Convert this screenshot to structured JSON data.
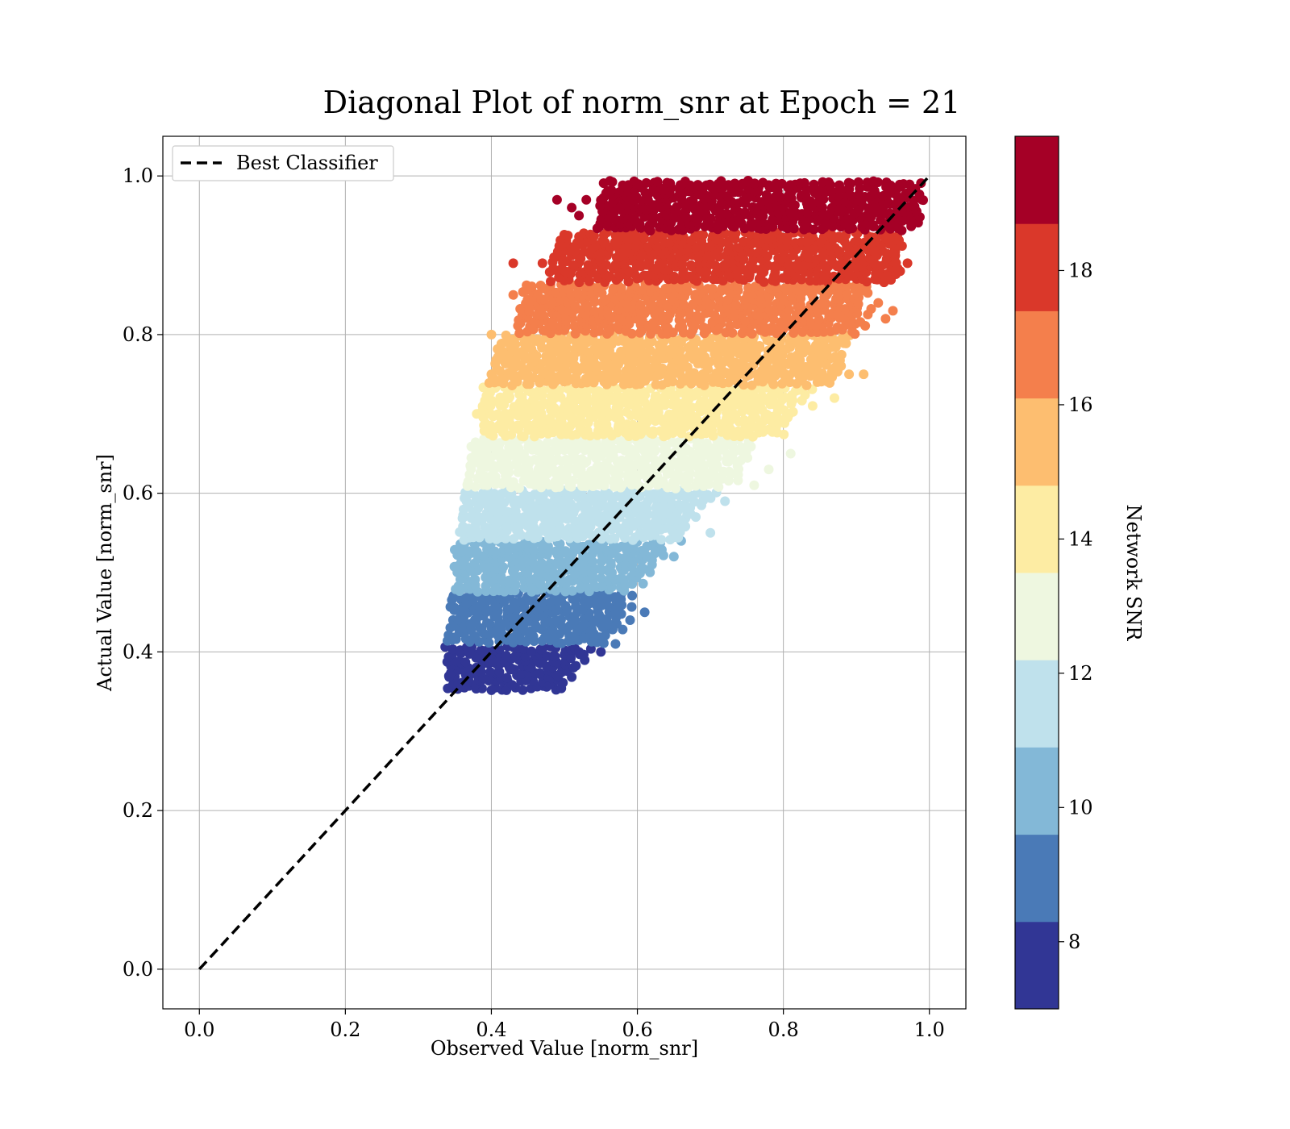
{
  "chart_data": {
    "type": "scatter",
    "title": "Diagonal Plot of norm_snr at Epoch = 21",
    "xlabel": "Observed Value [norm_snr]",
    "ylabel": "Actual Value [norm_snr]",
    "xlim": [
      -0.05,
      1.05
    ],
    "ylim": [
      -0.05,
      1.05
    ],
    "xticks": [
      "0.0",
      "0.2",
      "0.4",
      "0.6",
      "0.8",
      "1.0"
    ],
    "yticks": [
      "0.0",
      "0.2",
      "0.4",
      "0.6",
      "0.8",
      "1.0"
    ],
    "grid": true,
    "legend": {
      "placement": "top-left",
      "entries": [
        "Best Classifier"
      ]
    },
    "reference_line": {
      "name": "Best Classifier",
      "style": "dashed",
      "color": "#000000",
      "x": [
        0.0,
        1.0
      ],
      "y": [
        0.0,
        1.0
      ]
    },
    "colorbar": {
      "label": "Network SNR",
      "range": [
        7,
        20
      ],
      "ticks": [
        "8",
        "10",
        "12",
        "14",
        "16",
        "18"
      ],
      "bands": [
        {
          "from": 7.0,
          "to": 8.3,
          "color": "#313695"
        },
        {
          "from": 8.3,
          "to": 9.6,
          "color": "#4a7ab7"
        },
        {
          "from": 9.6,
          "to": 10.9,
          "color": "#83b8d7"
        },
        {
          "from": 10.9,
          "to": 12.2,
          "color": "#bfe1ec"
        },
        {
          "from": 12.2,
          "to": 13.5,
          "color": "#eef7e0"
        },
        {
          "from": 13.5,
          "to": 14.8,
          "color": "#fdeca3"
        },
        {
          "from": 14.8,
          "to": 16.1,
          "color": "#fdbe70"
        },
        {
          "from": 16.1,
          "to": 17.4,
          "color": "#f47f4c"
        },
        {
          "from": 17.4,
          "to": 18.7,
          "color": "#da382a"
        },
        {
          "from": 18.7,
          "to": 20.0,
          "color": "#a50026"
        }
      ]
    },
    "series": [
      {
        "name": "Network SNR 7.0–8.3",
        "snr": 7.6,
        "actual_range": [
          0.35,
          0.41
        ],
        "observed_range_at_bottom": [
          0.345,
          0.49
        ],
        "observed_range_at_top": [
          0.34,
          0.53
        ],
        "outliers": [
          [
            0.52,
            0.4
          ],
          [
            0.55,
            0.4
          ],
          [
            0.49,
            0.37
          ]
        ]
      },
      {
        "name": "Network SNR 8.3–9.6",
        "snr": 8.9,
        "actual_range": [
          0.41,
          0.475
        ],
        "observed_range_at_bottom": [
          0.345,
          0.56
        ],
        "observed_range_at_top": [
          0.35,
          0.59
        ],
        "outliers": [
          [
            0.57,
            0.41
          ],
          [
            0.61,
            0.45
          ],
          [
            0.59,
            0.44
          ],
          [
            0.58,
            0.48
          ]
        ]
      },
      {
        "name": "Network SNR 9.6–10.9",
        "snr": 10.2,
        "actual_range": [
          0.475,
          0.54
        ],
        "observed_range_at_bottom": [
          0.355,
          0.59
        ],
        "observed_range_at_top": [
          0.355,
          0.64
        ],
        "outliers": [
          [
            0.62,
            0.51
          ],
          [
            0.66,
            0.54
          ],
          [
            0.65,
            0.52
          ]
        ]
      },
      {
        "name": "Network SNR 10.9–12.2",
        "snr": 11.5,
        "actual_range": [
          0.54,
          0.605
        ],
        "observed_range_at_bottom": [
          0.36,
          0.65
        ],
        "observed_range_at_top": [
          0.37,
          0.7
        ],
        "outliers": [
          [
            0.72,
            0.59
          ],
          [
            0.7,
            0.55
          ],
          [
            0.68,
            0.57
          ],
          [
            0.71,
            0.61
          ]
        ]
      },
      {
        "name": "Network SNR 12.2–13.5",
        "snr": 12.8,
        "actual_range": [
          0.605,
          0.67
        ],
        "observed_range_at_bottom": [
          0.37,
          0.72
        ],
        "observed_range_at_top": [
          0.38,
          0.76
        ],
        "outliers": [
          [
            0.81,
            0.65
          ],
          [
            0.76,
            0.61
          ],
          [
            0.78,
            0.63
          ]
        ]
      },
      {
        "name": "Network SNR 13.5–14.8",
        "snr": 14.1,
        "actual_range": [
          0.67,
          0.735
        ],
        "observed_range_at_bottom": [
          0.395,
          0.79
        ],
        "observed_range_at_top": [
          0.39,
          0.83
        ],
        "outliers": [
          [
            0.84,
            0.71
          ],
          [
            0.87,
            0.72
          ],
          [
            0.82,
            0.73
          ],
          [
            0.38,
            0.7
          ]
        ]
      },
      {
        "name": "Network SNR 14.8–16.1",
        "snr": 15.4,
        "actual_range": [
          0.735,
          0.8
        ],
        "observed_range_at_bottom": [
          0.4,
          0.86
        ],
        "observed_range_at_top": [
          0.42,
          0.89
        ],
        "outliers": [
          [
            0.91,
            0.75
          ],
          [
            0.89,
            0.75
          ],
          [
            0.4,
            0.8
          ],
          [
            0.4,
            0.75
          ]
        ]
      },
      {
        "name": "Network SNR 16.1–17.4",
        "snr": 16.7,
        "actual_range": [
          0.8,
          0.865
        ],
        "observed_range_at_bottom": [
          0.44,
          0.9
        ],
        "observed_range_at_top": [
          0.45,
          0.92
        ],
        "outliers": [
          [
            0.94,
            0.82
          ],
          [
            0.95,
            0.83
          ],
          [
            0.43,
            0.85
          ],
          [
            0.93,
            0.84
          ]
        ]
      },
      {
        "name": "Network SNR 17.4–18.7",
        "snr": 18.0,
        "actual_range": [
          0.865,
          0.93
        ],
        "observed_range_at_bottom": [
          0.48,
          0.94
        ],
        "observed_range_at_top": [
          0.5,
          0.96
        ],
        "outliers": [
          [
            0.43,
            0.89
          ],
          [
            0.47,
            0.89
          ],
          [
            0.96,
            0.88
          ],
          [
            0.97,
            0.89
          ]
        ]
      },
      {
        "name": "Network SNR 18.7–20.0",
        "snr": 19.3,
        "actual_range": [
          0.93,
          1.0
        ],
        "observed_range_at_bottom": [
          0.55,
          0.98
        ],
        "observed_range_at_top": [
          0.56,
          0.98
        ],
        "outliers": [
          [
            0.49,
            0.97
          ],
          [
            0.51,
            0.96
          ],
          [
            0.53,
            0.97
          ],
          [
            0.99,
            0.97
          ],
          [
            0.52,
            0.95
          ]
        ]
      }
    ]
  }
}
